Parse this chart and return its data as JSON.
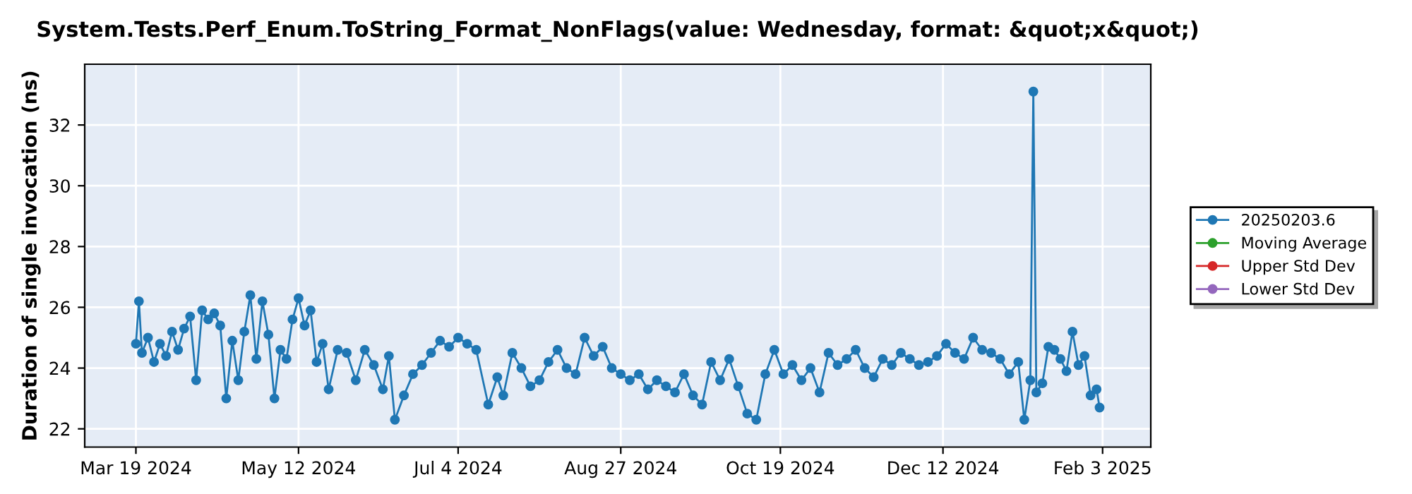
{
  "chart_data": {
    "type": "line",
    "title": "System.Tests.Perf_Enum.ToString_Format_NonFlags(value: Wednesday, format: &quot;x&quot;)",
    "ylabel": "Duration of single invocation (ns)",
    "xlim": [
      "2024-03-02",
      "2025-02-19"
    ],
    "xticks": [
      {
        "value": "2024-03-19",
        "label": "Mar 19 2024"
      },
      {
        "value": "2024-05-12",
        "label": "May 12 2024"
      },
      {
        "value": "2024-07-04",
        "label": "Jul 4 2024"
      },
      {
        "value": "2024-08-27",
        "label": "Aug 27 2024"
      },
      {
        "value": "2024-10-19",
        "label": "Oct 19 2024"
      },
      {
        "value": "2024-12-12",
        "label": "Dec 12 2024"
      },
      {
        "value": "2025-02-03",
        "label": "Feb 3 2025"
      }
    ],
    "ylim": [
      21.4,
      34
    ],
    "yticks": [
      22,
      24,
      26,
      28,
      30,
      32
    ],
    "grid": true,
    "legend": "right",
    "marker": "circle",
    "line_style": "solid",
    "series": [
      {
        "name": "20250203.6",
        "color": "#1f77b4",
        "x": [
          "2024-03-19",
          "2024-03-20",
          "2024-03-21",
          "2024-03-23",
          "2024-03-25",
          "2024-03-27",
          "2024-03-29",
          "2024-03-31",
          "2024-04-02",
          "2024-04-04",
          "2024-04-06",
          "2024-04-08",
          "2024-04-10",
          "2024-04-12",
          "2024-04-14",
          "2024-04-16",
          "2024-04-18",
          "2024-04-20",
          "2024-04-22",
          "2024-04-24",
          "2024-04-26",
          "2024-04-28",
          "2024-04-30",
          "2024-05-02",
          "2024-05-04",
          "2024-05-06",
          "2024-05-08",
          "2024-05-10",
          "2024-05-12",
          "2024-05-14",
          "2024-05-16",
          "2024-05-18",
          "2024-05-20",
          "2024-05-22",
          "2024-05-25",
          "2024-05-28",
          "2024-05-31",
          "2024-06-03",
          "2024-06-06",
          "2024-06-09",
          "2024-06-11",
          "2024-06-13",
          "2024-06-16",
          "2024-06-19",
          "2024-06-22",
          "2024-06-25",
          "2024-06-28",
          "2024-07-01",
          "2024-07-04",
          "2024-07-07",
          "2024-07-10",
          "2024-07-14",
          "2024-07-17",
          "2024-07-19",
          "2024-07-22",
          "2024-07-25",
          "2024-07-28",
          "2024-07-31",
          "2024-08-03",
          "2024-08-06",
          "2024-08-09",
          "2024-08-12",
          "2024-08-15",
          "2024-08-18",
          "2024-08-21",
          "2024-08-24",
          "2024-08-27",
          "2024-08-30",
          "2024-09-02",
          "2024-09-05",
          "2024-09-08",
          "2024-09-11",
          "2024-09-14",
          "2024-09-17",
          "2024-09-20",
          "2024-09-23",
          "2024-09-26",
          "2024-09-29",
          "2024-10-02",
          "2024-10-05",
          "2024-10-08",
          "2024-10-11",
          "2024-10-14",
          "2024-10-17",
          "2024-10-20",
          "2024-10-23",
          "2024-10-26",
          "2024-10-29",
          "2024-11-01",
          "2024-11-04",
          "2024-11-07",
          "2024-11-10",
          "2024-11-13",
          "2024-11-16",
          "2024-11-19",
          "2024-11-22",
          "2024-11-25",
          "2024-11-28",
          "2024-12-01",
          "2024-12-04",
          "2024-12-07",
          "2024-12-10",
          "2024-12-13",
          "2024-12-16",
          "2024-12-19",
          "2024-12-22",
          "2024-12-25",
          "2024-12-28",
          "2024-12-31",
          "2025-01-03",
          "2025-01-06",
          "2025-01-08",
          "2025-01-10",
          "2025-01-11",
          "2025-01-12",
          "2025-01-14",
          "2025-01-16",
          "2025-01-18",
          "2025-01-20",
          "2025-01-22",
          "2025-01-24",
          "2025-01-26",
          "2025-01-28",
          "2025-01-30",
          "2025-02-01",
          "2025-02-02"
        ],
        "values": [
          24.8,
          26.2,
          24.5,
          25.0,
          24.2,
          24.8,
          24.4,
          25.2,
          24.6,
          25.3,
          25.7,
          23.6,
          25.9,
          25.6,
          25.8,
          25.4,
          23.0,
          24.9,
          23.6,
          25.2,
          26.4,
          24.3,
          26.2,
          25.1,
          23.0,
          24.6,
          24.3,
          25.6,
          26.3,
          25.4,
          25.9,
          24.2,
          24.8,
          23.3,
          24.6,
          24.5,
          23.6,
          24.6,
          24.1,
          23.3,
          24.4,
          22.3,
          23.1,
          23.8,
          24.1,
          24.5,
          24.9,
          24.7,
          25.0,
          24.8,
          24.6,
          22.8,
          23.7,
          23.1,
          24.5,
          24.0,
          23.4,
          23.6,
          24.2,
          24.6,
          24.0,
          23.8,
          25.0,
          24.4,
          24.7,
          24.0,
          23.8,
          23.6,
          23.8,
          23.3,
          23.6,
          23.4,
          23.2,
          23.8,
          23.1,
          22.8,
          24.2,
          23.6,
          24.3,
          23.4,
          22.5,
          22.3,
          23.8,
          24.6,
          23.8,
          24.1,
          23.6,
          24.0,
          23.2,
          24.5,
          24.1,
          24.3,
          24.6,
          24.0,
          23.7,
          24.3,
          24.1,
          24.5,
          24.3,
          24.1,
          24.2,
          24.4,
          24.8,
          24.5,
          24.3,
          25.0,
          24.6,
          24.5,
          24.3,
          23.8,
          24.2,
          22.3,
          23.6,
          33.1,
          23.2,
          23.5,
          24.7,
          24.6,
          24.3,
          23.9,
          25.2,
          24.1,
          24.4,
          23.1,
          23.3,
          22.7
        ]
      },
      {
        "name": "Moving Average",
        "color": "#2ca02c"
      },
      {
        "name": "Upper Std Dev",
        "color": "#d62728"
      },
      {
        "name": "Lower Std Dev",
        "color": "#9467bd"
      }
    ]
  }
}
